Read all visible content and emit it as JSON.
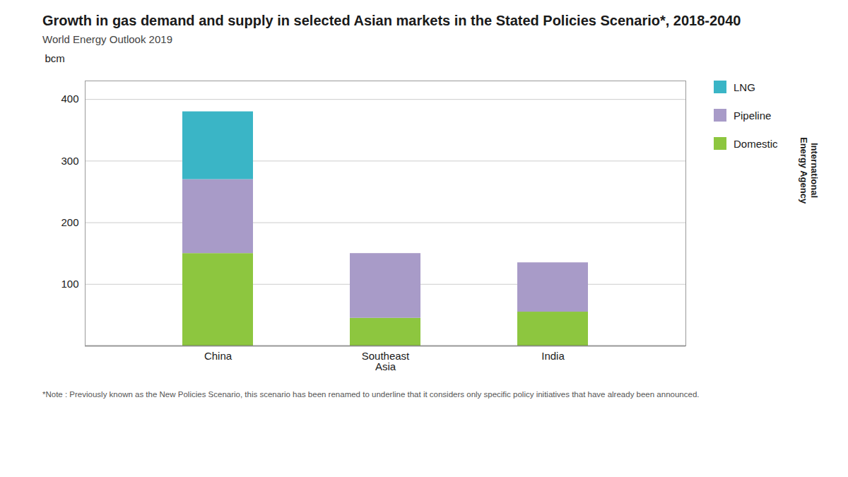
{
  "chart_data": {
    "type": "bar",
    "stacked": true,
    "title": "Growth in gas demand and supply in selected Asian markets in the Stated Policies Scenario*, 2018-2040",
    "subtitle": "World Energy Outlook 2019",
    "ylabel": "bcm",
    "categories": [
      "China",
      "Southeast\nAsia",
      "India"
    ],
    "series": [
      {
        "name": "Domestic",
        "color": "#8dc63f",
        "values": [
          150,
          45,
          55
        ]
      },
      {
        "name": "Pipeline",
        "color": "#a89bc8",
        "values": [
          120,
          105,
          80
        ]
      },
      {
        "name": "LNG",
        "color": "#3ab5c6",
        "values": [
          110,
          0,
          0
        ]
      }
    ],
    "ylim": [
      0,
      430
    ],
    "yticks": [
      100,
      200,
      300,
      400
    ],
    "grid": true,
    "legend": "right",
    "caption": "*Note : Previously known as the New Policies Scenario, this scenario has been renamed to underline that it considers only specific policy initiatives that have already been announced.",
    "annotations": [
      "International\nEnergy Agency"
    ]
  }
}
